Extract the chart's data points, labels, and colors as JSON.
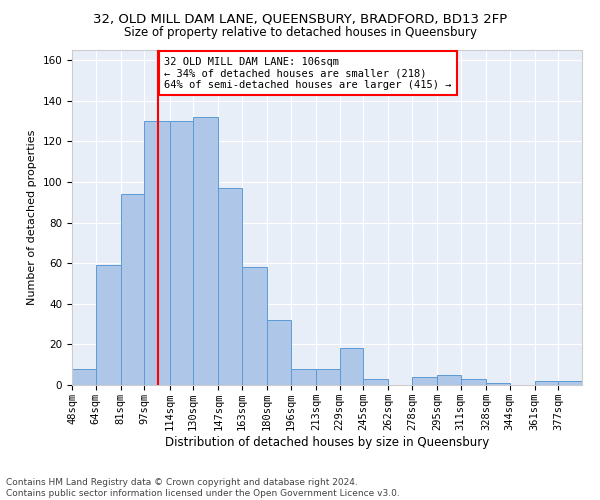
{
  "title_line1": "32, OLD MILL DAM LANE, QUEENSBURY, BRADFORD, BD13 2FP",
  "title_line2": "Size of property relative to detached houses in Queensbury",
  "xlabel": "Distribution of detached houses by size in Queensbury",
  "ylabel": "Number of detached properties",
  "footnote": "Contains HM Land Registry data © Crown copyright and database right 2024.\nContains public sector information licensed under the Open Government Licence v3.0.",
  "bar_labels": [
    "48sqm",
    "64sqm",
    "81sqm",
    "97sqm",
    "114sqm",
    "130sqm",
    "147sqm",
    "163sqm",
    "180sqm",
    "196sqm",
    "213sqm",
    "229sqm",
    "245sqm",
    "262sqm",
    "278sqm",
    "295sqm",
    "311sqm",
    "328sqm",
    "344sqm",
    "361sqm",
    "377sqm"
  ],
  "bar_values": [
    8,
    59,
    94,
    130,
    130,
    132,
    97,
    58,
    32,
    8,
    8,
    18,
    3,
    0,
    4,
    5,
    3,
    1,
    0,
    2,
    2
  ],
  "bar_color": "#aec6e8",
  "bar_edgecolor": "#5b9bd5",
  "vline_color": "red",
  "vline_x": 106,
  "annotation_text": "32 OLD MILL DAM LANE: 106sqm\n← 34% of detached houses are smaller (218)\n64% of semi-detached houses are larger (415) →",
  "annotation_bbox_edgecolor": "red",
  "annotation_bbox_facecolor": "white",
  "ylim": [
    0,
    165
  ],
  "yticks": [
    0,
    20,
    40,
    60,
    80,
    100,
    120,
    140,
    160
  ],
  "background_color": "#e8eef8",
  "grid_color": "white",
  "title1_fontsize": 9.5,
  "title2_fontsize": 8.5,
  "xlabel_fontsize": 8.5,
  "ylabel_fontsize": 8,
  "tick_fontsize": 7.5,
  "annotation_fontsize": 7.5,
  "footnote_fontsize": 6.5
}
